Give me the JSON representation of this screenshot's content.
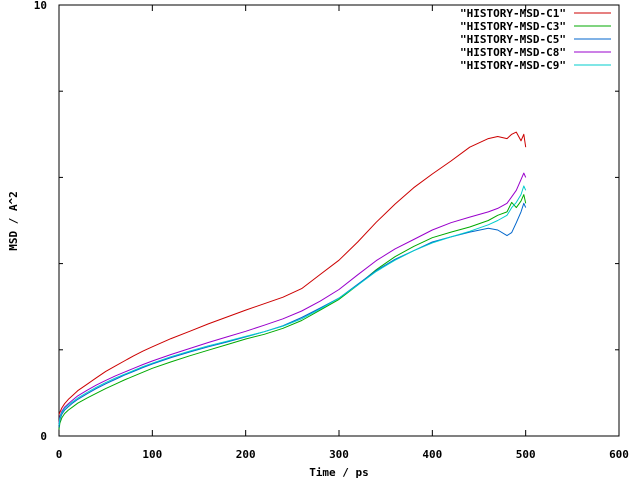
{
  "chart_data": {
    "type": "line",
    "xlabel": "Time / ps",
    "ylabel": "MSD / A^2",
    "xlim": [
      0,
      600
    ],
    "ylim": [
      0,
      10
    ],
    "x_ticks": [
      "0",
      "100",
      "200",
      "300",
      "400",
      "500",
      "600"
    ],
    "y_ticks": [
      "0",
      "10"
    ],
    "y_minor_ticks": [
      2,
      4,
      6,
      8
    ],
    "grid": false,
    "legend_position": "top-right",
    "series": [
      {
        "name": "\"HISTORY-MSD-C1\"",
        "color": "#cc0000",
        "x": [
          0,
          1,
          3,
          6,
          10,
          15,
          20,
          30,
          40,
          50,
          60,
          70,
          80,
          90,
          100,
          120,
          140,
          160,
          180,
          200,
          220,
          240,
          260,
          280,
          300,
          320,
          340,
          360,
          380,
          400,
          420,
          440,
          460,
          470,
          480,
          485,
          490,
          495,
          498,
          500
        ],
        "y": [
          0.5,
          0.55,
          0.65,
          0.75,
          0.85,
          0.95,
          1.05,
          1.2,
          1.35,
          1.5,
          1.62,
          1.74,
          1.86,
          1.97,
          2.07,
          2.26,
          2.43,
          2.6,
          2.76,
          2.92,
          3.07,
          3.22,
          3.42,
          3.75,
          4.08,
          4.5,
          4.96,
          5.38,
          5.76,
          6.08,
          6.38,
          6.7,
          6.9,
          6.95,
          6.9,
          7.0,
          7.05,
          6.85,
          7.0,
          6.7
        ]
      },
      {
        "name": "\"HISTORY-MSD-C3\"",
        "color": "#00aa00",
        "x": [
          0,
          1,
          3,
          6,
          10,
          15,
          20,
          30,
          40,
          50,
          60,
          70,
          80,
          90,
          100,
          120,
          140,
          160,
          180,
          200,
          220,
          240,
          260,
          280,
          300,
          320,
          340,
          360,
          380,
          400,
          420,
          440,
          460,
          470,
          480,
          485,
          490,
          495,
          498,
          500
        ],
        "y": [
          0.15,
          0.3,
          0.42,
          0.52,
          0.6,
          0.68,
          0.76,
          0.88,
          0.99,
          1.1,
          1.2,
          1.3,
          1.39,
          1.48,
          1.57,
          1.72,
          1.86,
          1.99,
          2.12,
          2.25,
          2.36,
          2.5,
          2.68,
          2.92,
          3.17,
          3.5,
          3.86,
          4.16,
          4.4,
          4.6,
          4.73,
          4.85,
          5.0,
          5.12,
          5.2,
          5.42,
          5.3,
          5.45,
          5.6,
          5.4
        ]
      },
      {
        "name": "\"HISTORY-MSD-C5\"",
        "color": "#0066cc",
        "x": [
          0,
          1,
          3,
          6,
          10,
          15,
          20,
          30,
          40,
          50,
          60,
          70,
          80,
          90,
          100,
          120,
          140,
          160,
          180,
          200,
          220,
          240,
          260,
          280,
          300,
          320,
          340,
          360,
          380,
          400,
          420,
          440,
          460,
          470,
          480,
          485,
          490,
          495,
          498,
          500
        ],
        "y": [
          0.2,
          0.38,
          0.5,
          0.6,
          0.68,
          0.77,
          0.85,
          0.98,
          1.1,
          1.21,
          1.31,
          1.41,
          1.5,
          1.59,
          1.67,
          1.82,
          1.95,
          2.07,
          2.18,
          2.3,
          2.42,
          2.56,
          2.75,
          2.97,
          3.2,
          3.52,
          3.84,
          4.1,
          4.3,
          4.5,
          4.62,
          4.73,
          4.82,
          4.78,
          4.65,
          4.72,
          4.95,
          5.2,
          5.4,
          5.3
        ]
      },
      {
        "name": "\"HISTORY-MSD-C8\"",
        "color": "#9900cc",
        "x": [
          0,
          1,
          3,
          6,
          10,
          15,
          20,
          30,
          40,
          50,
          60,
          70,
          80,
          90,
          100,
          120,
          140,
          160,
          180,
          200,
          220,
          240,
          260,
          280,
          300,
          320,
          340,
          360,
          380,
          400,
          420,
          440,
          460,
          470,
          480,
          485,
          490,
          495,
          498,
          500
        ],
        "y": [
          0.3,
          0.45,
          0.57,
          0.67,
          0.75,
          0.84,
          0.93,
          1.06,
          1.18,
          1.29,
          1.39,
          1.48,
          1.57,
          1.66,
          1.74,
          1.89,
          2.03,
          2.17,
          2.3,
          2.43,
          2.57,
          2.72,
          2.9,
          3.13,
          3.4,
          3.74,
          4.07,
          4.34,
          4.56,
          4.78,
          4.95,
          5.08,
          5.2,
          5.28,
          5.4,
          5.55,
          5.7,
          5.95,
          6.1,
          6.0
        ]
      },
      {
        "name": "\"HISTORY-MSD-C9\"",
        "color": "#00cccc",
        "x": [
          0,
          1,
          3,
          6,
          10,
          15,
          20,
          30,
          40,
          50,
          60,
          70,
          80,
          90,
          100,
          120,
          140,
          160,
          180,
          200,
          220,
          240,
          260,
          280,
          300,
          320,
          340,
          360,
          380,
          400,
          420,
          440,
          460,
          470,
          480,
          485,
          490,
          495,
          498,
          500
        ],
        "y": [
          0.25,
          0.42,
          0.54,
          0.64,
          0.72,
          0.8,
          0.88,
          1.01,
          1.13,
          1.24,
          1.34,
          1.43,
          1.52,
          1.61,
          1.69,
          1.84,
          1.97,
          2.09,
          2.2,
          2.31,
          2.42,
          2.55,
          2.72,
          2.95,
          3.2,
          3.5,
          3.82,
          4.08,
          4.3,
          4.48,
          4.62,
          4.75,
          4.9,
          5.0,
          5.12,
          5.3,
          5.42,
          5.6,
          5.8,
          5.7
        ]
      }
    ]
  }
}
